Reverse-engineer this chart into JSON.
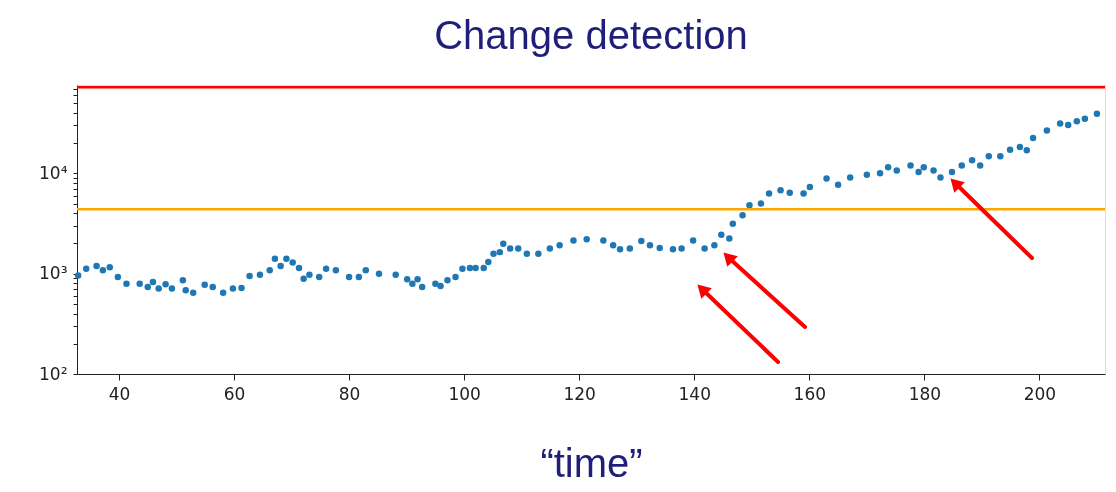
{
  "chart_data": {
    "type": "scatter",
    "title": "Change detection",
    "xlabel": "“time”",
    "x": [
      32.9,
      34.3,
      36.1,
      37.2,
      38.4,
      39.8,
      41.3,
      43.6,
      45.0,
      45.9,
      46.9,
      48.1,
      49.2,
      51.1,
      51.6,
      52.9,
      54.9,
      56.3,
      58.1,
      59.8,
      61.3,
      62.7,
      64.5,
      66.2,
      67.1,
      68.1,
      69.1,
      70.2,
      71.3,
      72.1,
      73.1,
      74.8,
      76.0,
      77.7,
      80.0,
      81.7,
      82.9,
      85.2,
      88.1,
      90.1,
      91.0,
      91.9,
      92.7,
      95.0,
      95.9,
      97.1,
      98.5,
      99.7,
      101.0,
      102.0,
      103.4,
      104.2,
      105.1,
      106.2,
      106.8,
      108.0,
      109.4,
      110.9,
      112.9,
      114.9,
      116.6,
      119.0,
      121.3,
      124.2,
      125.9,
      127.1,
      128.8,
      130.8,
      132.3,
      134.0,
      136.3,
      137.8,
      139.8,
      141.8,
      143.5,
      144.7,
      146.1,
      146.7,
      148.4,
      149.6,
      151.6,
      153.0,
      155.0,
      156.6,
      159.0,
      160.1,
      163.0,
      165.0,
      167.1,
      170.0,
      172.3,
      173.7,
      175.2,
      177.6,
      179.0,
      179.9,
      181.6,
      182.8,
      184.8,
      186.5,
      188.3,
      189.7,
      191.2,
      193.2,
      194.9,
      196.6,
      197.8,
      198.9,
      201.3,
      203.6,
      205.0,
      206.5,
      207.9,
      210.0
    ],
    "series": [
      {
        "color": "#1f77b4",
        "values": [
          960,
          1120,
          1190,
          1080,
          1160,
          925,
          795,
          795,
          735,
          825,
          710,
          783,
          710,
          858,
          683,
          647,
          777,
          735,
          647,
          710,
          720,
          948,
          977,
          1080,
          1410,
          1190,
          1410,
          1290,
          1140,
          890,
          977,
          925,
          1120,
          1080,
          925,
          925,
          1080,
          1000,
          977,
          880,
          795,
          880,
          735,
          795,
          753,
          858,
          925,
          1120,
          1140,
          1140,
          1140,
          1310,
          1580,
          1640,
          1990,
          1780,
          1780,
          1580,
          1580,
          1780,
          1920,
          2140,
          2200,
          2140,
          1920,
          1750,
          1780,
          2120,
          1920,
          1800,
          1750,
          1780,
          2140,
          1780,
          1920,
          2450,
          2240,
          3150,
          3820,
          4800,
          5000,
          6300,
          6800,
          6400,
          6300,
          7300,
          8900,
          7700,
          9100,
          9700,
          10000,
          11500,
          10700,
          12000,
          10300,
          11500,
          10700,
          9100,
          10300,
          12000,
          13500,
          12000,
          14800,
          14800,
          17200,
          18300,
          17000,
          22500,
          26800,
          31400,
          30300,
          33000,
          35100,
          39300
        ]
      }
    ],
    "xlim": [
      32.7,
      211.4
    ],
    "xticks": [
      40,
      60,
      80,
      100,
      120,
      140,
      160,
      180,
      200
    ],
    "ylim": [
      100,
      76000
    ],
    "log": true,
    "yticks": [
      {
        "value": 100,
        "label": "10²"
      },
      {
        "value": 200,
        "label": null
      },
      {
        "value": 300,
        "label": null
      },
      {
        "value": 400,
        "label": null
      },
      {
        "value": 500,
        "label": null
      },
      {
        "value": 600,
        "label": null
      },
      {
        "value": 700,
        "label": null
      },
      {
        "value": 800,
        "label": null
      },
      {
        "value": 900,
        "label": null
      },
      {
        "value": 1000,
        "label": "10³"
      },
      {
        "value": 2000,
        "label": null
      },
      {
        "value": 3000,
        "label": null
      },
      {
        "value": 4000,
        "label": null
      },
      {
        "value": 5000,
        "label": null
      },
      {
        "value": 6000,
        "label": null
      },
      {
        "value": 7000,
        "label": null
      },
      {
        "value": 8000,
        "label": null
      },
      {
        "value": 9000,
        "label": null
      },
      {
        "value": 10000,
        "label": "10⁴"
      },
      {
        "value": 20000,
        "label": null
      },
      {
        "value": 30000,
        "label": null
      },
      {
        "value": 40000,
        "label": null
      },
      {
        "value": 50000,
        "label": null
      },
      {
        "value": 60000,
        "label": null
      },
      {
        "value": 70000,
        "label": null
      }
    ],
    "ref_lines": [
      {
        "axis": "y",
        "value": 72000,
        "color": "#ff0000"
      },
      {
        "axis": "y",
        "value": 4380,
        "color": "#ffa500"
      }
    ],
    "marker": "circle",
    "grid": false
  }
}
